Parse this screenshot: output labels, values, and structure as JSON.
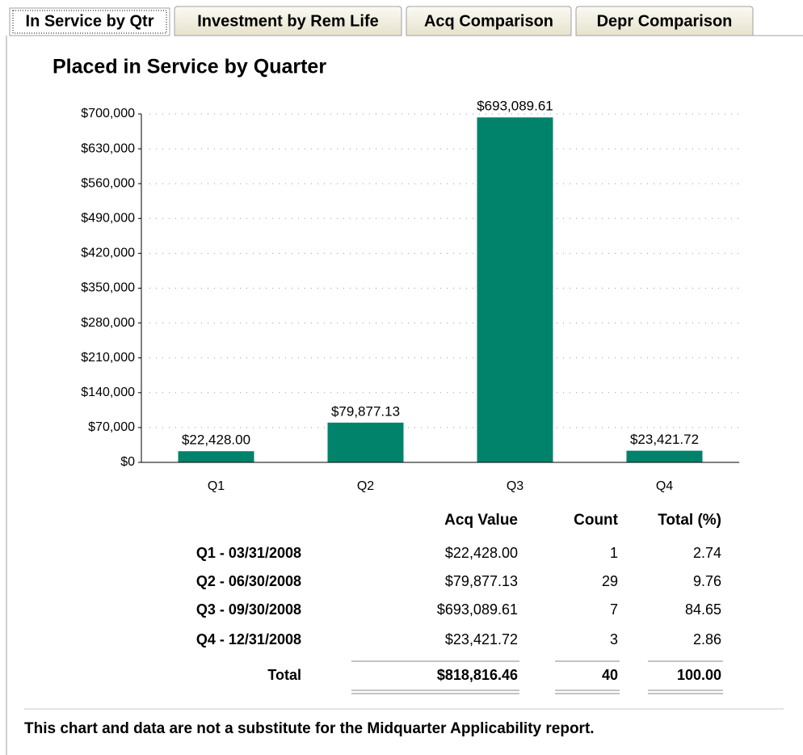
{
  "tabs": [
    "In Service by Qtr",
    "Investment by Rem Life",
    "Acq Comparison",
    "Depr Comparison"
  ],
  "chart_data": {
    "type": "bar",
    "title": "Placed in Service by Quarter",
    "categories": [
      "Q1",
      "Q2",
      "Q3",
      "Q4"
    ],
    "values": [
      22428.0,
      79877.13,
      693089.61,
      23421.72
    ],
    "value_labels": [
      "$22,428.00",
      "$79,877.13",
      "$693,089.61",
      "$23,421.72"
    ],
    "color": "#00836a",
    "ylim": [
      0,
      700000
    ],
    "yticks": [
      {
        "value": 0,
        "label": "$0"
      },
      {
        "value": 70000,
        "label": "$70,000"
      },
      {
        "value": 140000,
        "label": "$140,000"
      },
      {
        "value": 210000,
        "label": "$210,000"
      },
      {
        "value": 280000,
        "label": "$280,000"
      },
      {
        "value": 350000,
        "label": "$350,000"
      },
      {
        "value": 420000,
        "label": "$420,000"
      },
      {
        "value": 490000,
        "label": "$490,000"
      },
      {
        "value": 560000,
        "label": "$560,000"
      },
      {
        "value": 630000,
        "label": "$630,000"
      },
      {
        "value": 700000,
        "label": "$700,000"
      }
    ],
    "grid": true
  },
  "table": {
    "header": [
      "Acq Value",
      "Count",
      "Total (%)"
    ],
    "rows": [
      [
        "Q1 - 03/31/2008",
        "$22,428.00",
        "1",
        "2.74"
      ],
      [
        "Q2 - 06/30/2008",
        "$79,877.13",
        "29",
        "9.76"
      ],
      [
        "Q3 - 09/30/2008",
        "$693,089.61",
        "7",
        "84.65"
      ],
      [
        "Q4 - 12/31/2008",
        "$23,421.72",
        "3",
        "2.86"
      ]
    ],
    "total": [
      "Total",
      "$818,816.46",
      "40",
      "100.00"
    ]
  },
  "footer": "This chart and data are not a substitute for the Midquarter Applicability report."
}
